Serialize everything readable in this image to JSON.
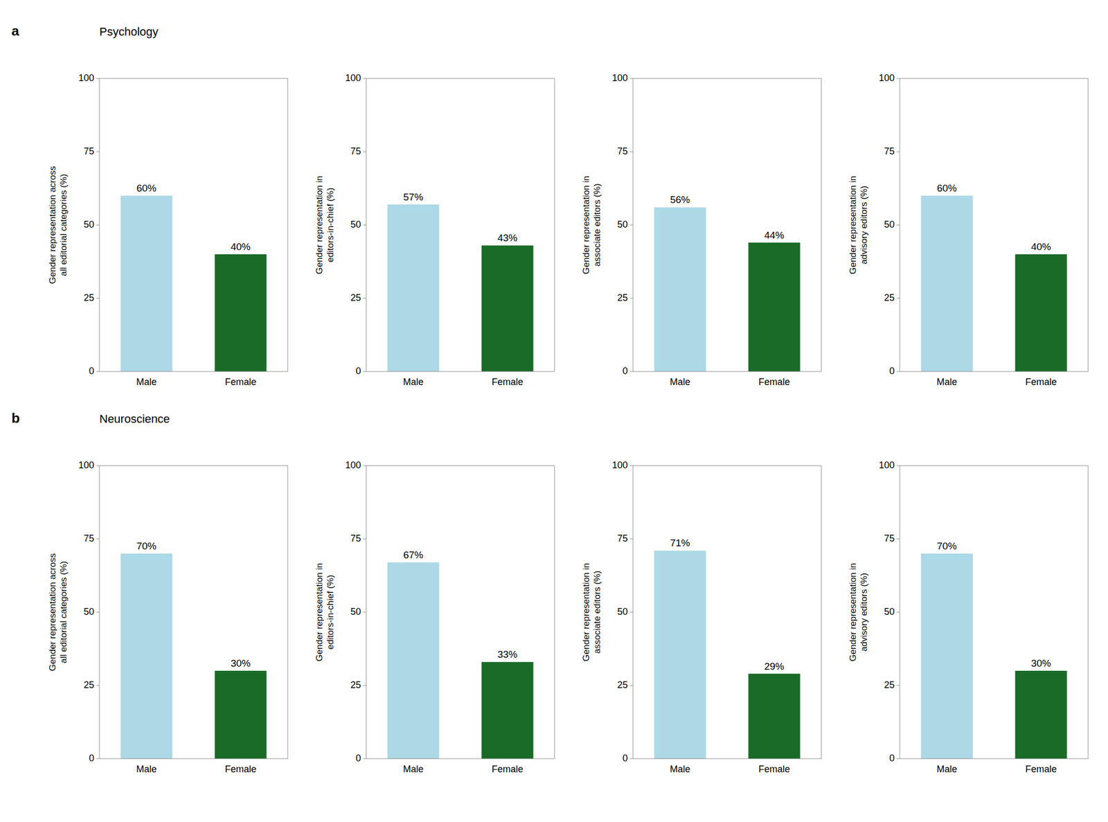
{
  "chart_data": [
    {
      "type": "bar",
      "title": "Psychology",
      "annotations": [
        "a"
      ],
      "categories": [
        "Male",
        "Female"
      ],
      "values": [
        60,
        40
      ],
      "value_labels": [
        "60%",
        "40%"
      ],
      "data_labels": true,
      "colors": [
        "#add8e6",
        "#1a6b27"
      ],
      "ylabel": "Gender representation across\nall editorial categories (%)",
      "ylim": [
        0,
        100
      ],
      "yticks": [
        0,
        25,
        50,
        75,
        100
      ],
      "grid": false
    },
    {
      "type": "bar",
      "categories": [
        "Male",
        "Female"
      ],
      "values": [
        57,
        43
      ],
      "value_labels": [
        "57%",
        "43%"
      ],
      "data_labels": true,
      "colors": [
        "#add8e6",
        "#1a6b27"
      ],
      "ylabel": "Gender representation in\neditors-in-chief (%)",
      "ylim": [
        0,
        100
      ],
      "yticks": [
        0,
        25,
        50,
        75,
        100
      ],
      "grid": false
    },
    {
      "type": "bar",
      "categories": [
        "Male",
        "Female"
      ],
      "values": [
        56,
        44
      ],
      "value_labels": [
        "56%",
        "44%"
      ],
      "data_labels": true,
      "colors": [
        "#add8e6",
        "#1a6b27"
      ],
      "ylabel": "Gender representation in\nassociate editors (%)",
      "ylim": [
        0,
        100
      ],
      "yticks": [
        0,
        25,
        50,
        75,
        100
      ],
      "grid": false
    },
    {
      "type": "bar",
      "categories": [
        "Male",
        "Female"
      ],
      "values": [
        60,
        40
      ],
      "value_labels": [
        "60%",
        "40%"
      ],
      "data_labels": true,
      "colors": [
        "#add8e6",
        "#1a6b27"
      ],
      "ylabel": "Gender representation in\nadvisory editors (%)",
      "ylim": [
        0,
        100
      ],
      "yticks": [
        0,
        25,
        50,
        75,
        100
      ],
      "grid": false
    },
    {
      "type": "bar",
      "title": "Neuroscience",
      "annotations": [
        "b"
      ],
      "categories": [
        "Male",
        "Female"
      ],
      "values": [
        70,
        30
      ],
      "value_labels": [
        "70%",
        "30%"
      ],
      "data_labels": true,
      "colors": [
        "#add8e6",
        "#1a6b27"
      ],
      "ylabel": "Gender representation across\nall editorial categories (%)",
      "ylim": [
        0,
        100
      ],
      "yticks": [
        0,
        25,
        50,
        75,
        100
      ],
      "grid": false
    },
    {
      "type": "bar",
      "categories": [
        "Male",
        "Female"
      ],
      "values": [
        67,
        33
      ],
      "value_labels": [
        "67%",
        "33%"
      ],
      "data_labels": true,
      "colors": [
        "#add8e6",
        "#1a6b27"
      ],
      "ylabel": "Gender representation in\neditors-in-chief (%)",
      "ylim": [
        0,
        100
      ],
      "yticks": [
        0,
        25,
        50,
        75,
        100
      ],
      "grid": false
    },
    {
      "type": "bar",
      "categories": [
        "Male",
        "Female"
      ],
      "values": [
        71,
        29
      ],
      "value_labels": [
        "71%",
        "29%"
      ],
      "data_labels": true,
      "colors": [
        "#add8e6",
        "#1a6b27"
      ],
      "ylabel": "Gender representation in\nassociate editors (%)",
      "ylim": [
        0,
        100
      ],
      "yticks": [
        0,
        25,
        50,
        75,
        100
      ],
      "grid": false
    },
    {
      "type": "bar",
      "categories": [
        "Male",
        "Female"
      ],
      "values": [
        70,
        30
      ],
      "value_labels": [
        "70%",
        "30%"
      ],
      "data_labels": true,
      "colors": [
        "#add8e6",
        "#1a6b27"
      ],
      "ylabel": "Gender representation in\nadvisory editors (%)",
      "ylim": [
        0,
        100
      ],
      "yticks": [
        0,
        25,
        50,
        75,
        100
      ],
      "grid": false
    }
  ]
}
